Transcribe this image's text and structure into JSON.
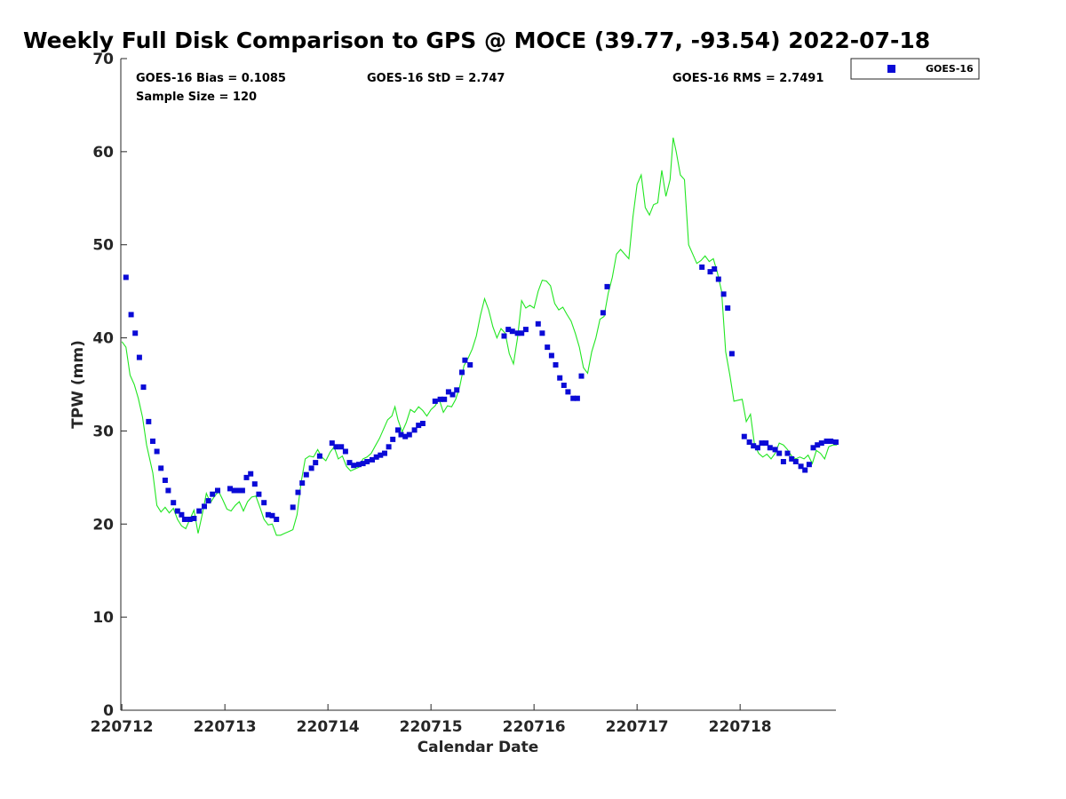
{
  "chart_data": {
    "type": "scatter+line",
    "title": "Weekly Full Disk Comparison to GPS @ MOCE (39.77, -93.54) 2022-07-18",
    "xlabel": "Calendar Date",
    "ylabel": "TPW (mm)",
    "xlim": [
      0,
      6.95
    ],
    "ylim": [
      0,
      70
    ],
    "x_ticks": [
      0,
      1,
      2,
      3,
      4,
      5,
      6
    ],
    "x_tick_labels": [
      "220712",
      "220713",
      "220714",
      "220715",
      "220716",
      "220717",
      "220718"
    ],
    "y_ticks": [
      0,
      10,
      20,
      30,
      40,
      50,
      60,
      70
    ],
    "y_tick_labels": [
      "0",
      "10",
      "20",
      "30",
      "40",
      "50",
      "60",
      "70"
    ],
    "stats": {
      "bias": "GOES-16 Bias = 0.1085",
      "std": "GOES-16 StD = 2.747",
      "rms": "GOES-16 RMS = 2.7491",
      "sample": "Sample Size = 120"
    },
    "legend": {
      "position": "top-right-outside",
      "entries": [
        "GOES-16"
      ]
    },
    "colors": {
      "goes": "#0a0ad6",
      "gps": "#22e622",
      "axis": "#262626"
    },
    "series": [
      {
        "name": "GOES-16",
        "kind": "scatter",
        "points": [
          [
            0.04,
            46.5
          ],
          [
            0.09,
            42.5
          ],
          [
            0.13,
            40.5
          ],
          [
            0.17,
            37.9
          ],
          [
            0.21,
            34.7
          ],
          [
            0.26,
            31.0
          ],
          [
            0.3,
            28.9
          ],
          [
            0.34,
            27.8
          ],
          [
            0.38,
            26.0
          ],
          [
            0.42,
            24.7
          ],
          [
            0.45,
            23.6
          ],
          [
            0.5,
            22.3
          ],
          [
            0.54,
            21.4
          ],
          [
            0.58,
            21.0
          ],
          [
            0.61,
            20.5
          ],
          [
            0.66,
            20.5
          ],
          [
            0.7,
            20.6
          ],
          [
            0.75,
            21.4
          ],
          [
            0.8,
            21.9
          ],
          [
            0.84,
            22.5
          ],
          [
            0.88,
            23.2
          ],
          [
            0.93,
            23.6
          ],
          [
            1.05,
            23.8
          ],
          [
            1.09,
            23.6
          ],
          [
            1.13,
            23.6
          ],
          [
            1.17,
            23.6
          ],
          [
            1.21,
            25.0
          ],
          [
            1.25,
            25.4
          ],
          [
            1.29,
            24.3
          ],
          [
            1.33,
            23.2
          ],
          [
            1.38,
            22.3
          ],
          [
            1.42,
            21.0
          ],
          [
            1.46,
            20.9
          ],
          [
            1.5,
            20.5
          ],
          [
            1.66,
            21.8
          ],
          [
            1.71,
            23.4
          ],
          [
            1.75,
            24.4
          ],
          [
            1.79,
            25.3
          ],
          [
            1.84,
            26.0
          ],
          [
            1.88,
            26.6
          ],
          [
            1.92,
            27.3
          ],
          [
            2.04,
            28.7
          ],
          [
            2.08,
            28.3
          ],
          [
            2.13,
            28.3
          ],
          [
            2.17,
            27.8
          ],
          [
            2.21,
            26.6
          ],
          [
            2.25,
            26.3
          ],
          [
            2.3,
            26.4
          ],
          [
            2.34,
            26.5
          ],
          [
            2.38,
            26.7
          ],
          [
            2.43,
            26.9
          ],
          [
            2.47,
            27.2
          ],
          [
            2.51,
            27.4
          ],
          [
            2.55,
            27.6
          ],
          [
            2.59,
            28.3
          ],
          [
            2.63,
            29.1
          ],
          [
            2.68,
            30.1
          ],
          [
            2.71,
            29.6
          ],
          [
            2.75,
            29.4
          ],
          [
            2.79,
            29.6
          ],
          [
            2.84,
            30.1
          ],
          [
            2.88,
            30.6
          ],
          [
            2.92,
            30.8
          ],
          [
            3.04,
            33.2
          ],
          [
            3.09,
            33.4
          ],
          [
            3.13,
            33.4
          ],
          [
            3.17,
            34.2
          ],
          [
            3.21,
            33.9
          ],
          [
            3.25,
            34.4
          ],
          [
            3.3,
            36.3
          ],
          [
            3.33,
            37.6
          ],
          [
            3.38,
            37.1
          ],
          [
            3.71,
            40.2
          ],
          [
            3.75,
            40.9
          ],
          [
            3.79,
            40.7
          ],
          [
            3.84,
            40.5
          ],
          [
            3.88,
            40.5
          ],
          [
            3.92,
            40.9
          ],
          [
            4.04,
            41.5
          ],
          [
            4.08,
            40.5
          ],
          [
            4.13,
            39.0
          ],
          [
            4.17,
            38.1
          ],
          [
            4.21,
            37.1
          ],
          [
            4.25,
            35.7
          ],
          [
            4.29,
            34.9
          ],
          [
            4.33,
            34.2
          ],
          [
            4.38,
            33.5
          ],
          [
            4.42,
            33.5
          ],
          [
            4.46,
            35.9
          ],
          [
            4.67,
            42.7
          ],
          [
            4.71,
            45.5
          ],
          [
            5.63,
            47.6
          ],
          [
            5.71,
            47.1
          ],
          [
            5.75,
            47.4
          ],
          [
            5.79,
            46.3
          ],
          [
            5.84,
            44.7
          ],
          [
            5.88,
            43.2
          ],
          [
            5.92,
            38.3
          ],
          [
            6.04,
            29.4
          ],
          [
            6.09,
            28.8
          ],
          [
            6.13,
            28.4
          ],
          [
            6.17,
            28.2
          ],
          [
            6.21,
            28.7
          ],
          [
            6.25,
            28.7
          ],
          [
            6.29,
            28.2
          ],
          [
            6.34,
            28.0
          ],
          [
            6.38,
            27.6
          ],
          [
            6.42,
            26.7
          ],
          [
            6.46,
            27.6
          ],
          [
            6.5,
            27.0
          ],
          [
            6.54,
            26.7
          ],
          [
            6.59,
            26.2
          ],
          [
            6.63,
            25.8
          ],
          [
            6.67,
            26.4
          ],
          [
            6.71,
            28.2
          ],
          [
            6.75,
            28.5
          ],
          [
            6.79,
            28.7
          ],
          [
            6.84,
            28.9
          ],
          [
            6.88,
            28.9
          ],
          [
            6.93,
            28.8
          ]
        ]
      },
      {
        "name": "GPS",
        "kind": "line",
        "points": [
          [
            0.0,
            39.6
          ],
          [
            0.04,
            39.0
          ],
          [
            0.08,
            36.0
          ],
          [
            0.12,
            35.0
          ],
          [
            0.16,
            33.5
          ],
          [
            0.2,
            31.5
          ],
          [
            0.24,
            28.5
          ],
          [
            0.3,
            25.5
          ],
          [
            0.34,
            22.0
          ],
          [
            0.38,
            21.3
          ],
          [
            0.42,
            21.8
          ],
          [
            0.46,
            21.2
          ],
          [
            0.5,
            21.7
          ],
          [
            0.54,
            20.5
          ],
          [
            0.58,
            19.8
          ],
          [
            0.62,
            19.5
          ],
          [
            0.66,
            20.5
          ],
          [
            0.7,
            21.5
          ],
          [
            0.74,
            19.0
          ],
          [
            0.78,
            21.0
          ],
          [
            0.82,
            23.3
          ],
          [
            0.86,
            22.3
          ],
          [
            0.9,
            23.0
          ],
          [
            0.94,
            23.5
          ],
          [
            0.98,
            22.6
          ],
          [
            1.02,
            21.6
          ],
          [
            1.06,
            21.4
          ],
          [
            1.1,
            22.0
          ],
          [
            1.14,
            22.4
          ],
          [
            1.18,
            21.4
          ],
          [
            1.22,
            22.4
          ],
          [
            1.26,
            22.9
          ],
          [
            1.3,
            23.0
          ],
          [
            1.34,
            21.8
          ],
          [
            1.38,
            20.5
          ],
          [
            1.42,
            19.9
          ],
          [
            1.46,
            20.0
          ],
          [
            1.5,
            18.8
          ],
          [
            1.54,
            18.8
          ],
          [
            1.58,
            19.0
          ],
          [
            1.62,
            19.2
          ],
          [
            1.66,
            19.4
          ],
          [
            1.7,
            21.0
          ],
          [
            1.74,
            24.5
          ],
          [
            1.78,
            27.0
          ],
          [
            1.82,
            27.3
          ],
          [
            1.86,
            27.2
          ],
          [
            1.9,
            28.0
          ],
          [
            1.94,
            27.2
          ],
          [
            1.98,
            26.8
          ],
          [
            2.02,
            27.7
          ],
          [
            2.06,
            28.3
          ],
          [
            2.1,
            27.0
          ],
          [
            2.14,
            27.3
          ],
          [
            2.18,
            26.2
          ],
          [
            2.22,
            25.7
          ],
          [
            2.26,
            25.9
          ],
          [
            2.3,
            26.1
          ],
          [
            2.34,
            27.0
          ],
          [
            2.38,
            27.2
          ],
          [
            2.42,
            27.6
          ],
          [
            2.46,
            28.4
          ],
          [
            2.5,
            29.2
          ],
          [
            2.54,
            30.2
          ],
          [
            2.58,
            31.2
          ],
          [
            2.62,
            31.6
          ],
          [
            2.65,
            32.6
          ],
          [
            2.68,
            31.2
          ],
          [
            2.72,
            29.9
          ],
          [
            2.76,
            30.9
          ],
          [
            2.8,
            32.3
          ],
          [
            2.84,
            32.0
          ],
          [
            2.88,
            32.6
          ],
          [
            2.92,
            32.2
          ],
          [
            2.96,
            31.6
          ],
          [
            3.0,
            32.3
          ],
          [
            3.04,
            32.7
          ],
          [
            3.08,
            33.4
          ],
          [
            3.12,
            32.0
          ],
          [
            3.16,
            32.7
          ],
          [
            3.2,
            32.6
          ],
          [
            3.24,
            33.4
          ],
          [
            3.28,
            34.8
          ],
          [
            3.32,
            37.0
          ],
          [
            3.36,
            37.8
          ],
          [
            3.4,
            38.8
          ],
          [
            3.44,
            40.2
          ],
          [
            3.48,
            42.4
          ],
          [
            3.52,
            44.2
          ],
          [
            3.56,
            43.0
          ],
          [
            3.6,
            41.2
          ],
          [
            3.64,
            40.0
          ],
          [
            3.68,
            41.0
          ],
          [
            3.72,
            40.5
          ],
          [
            3.76,
            38.3
          ],
          [
            3.8,
            37.2
          ],
          [
            3.84,
            40.0
          ],
          [
            3.88,
            44.0
          ],
          [
            3.92,
            43.2
          ],
          [
            3.96,
            43.5
          ],
          [
            4.0,
            43.2
          ],
          [
            4.04,
            45.0
          ],
          [
            4.08,
            46.2
          ],
          [
            4.12,
            46.1
          ],
          [
            4.16,
            45.6
          ],
          [
            4.2,
            43.7
          ],
          [
            4.24,
            43.0
          ],
          [
            4.28,
            43.3
          ],
          [
            4.32,
            42.5
          ],
          [
            4.36,
            41.8
          ],
          [
            4.4,
            40.5
          ],
          [
            4.44,
            39.0
          ],
          [
            4.48,
            36.8
          ],
          [
            4.52,
            36.2
          ],
          [
            4.56,
            38.5
          ],
          [
            4.6,
            40.0
          ],
          [
            4.64,
            42.0
          ],
          [
            4.68,
            42.3
          ],
          [
            4.72,
            44.8
          ],
          [
            4.76,
            46.5
          ],
          [
            4.8,
            49.0
          ],
          [
            4.84,
            49.5
          ],
          [
            4.88,
            49.0
          ],
          [
            4.92,
            48.5
          ],
          [
            4.96,
            53.0
          ],
          [
            5.0,
            56.5
          ],
          [
            5.04,
            57.5
          ],
          [
            5.08,
            54.0
          ],
          [
            5.12,
            53.2
          ],
          [
            5.16,
            54.3
          ],
          [
            5.2,
            54.5
          ],
          [
            5.24,
            58.0
          ],
          [
            5.28,
            55.2
          ],
          [
            5.32,
            57.0
          ],
          [
            5.35,
            61.5
          ],
          [
            5.38,
            60.0
          ],
          [
            5.42,
            57.5
          ],
          [
            5.46,
            57.0
          ],
          [
            5.5,
            50.0
          ],
          [
            5.54,
            49.0
          ],
          [
            5.58,
            48.0
          ],
          [
            5.62,
            48.3
          ],
          [
            5.66,
            48.8
          ],
          [
            5.7,
            48.2
          ],
          [
            5.74,
            48.5
          ],
          [
            5.78,
            47.0
          ],
          [
            5.82,
            45.0
          ],
          [
            5.86,
            38.5
          ],
          [
            5.9,
            36.0
          ],
          [
            5.94,
            33.2
          ],
          [
            5.98,
            33.3
          ],
          [
            6.02,
            33.4
          ],
          [
            6.06,
            31.0
          ],
          [
            6.1,
            31.8
          ],
          [
            6.14,
            28.5
          ],
          [
            6.18,
            27.6
          ],
          [
            6.22,
            27.2
          ],
          [
            6.26,
            27.5
          ],
          [
            6.3,
            27.0
          ],
          [
            6.34,
            27.6
          ],
          [
            6.38,
            28.7
          ],
          [
            6.42,
            28.5
          ],
          [
            6.46,
            28.0
          ],
          [
            6.5,
            27.3
          ],
          [
            6.54,
            27.0
          ],
          [
            6.58,
            27.2
          ],
          [
            6.62,
            27.0
          ],
          [
            6.66,
            27.4
          ],
          [
            6.7,
            26.5
          ],
          [
            6.74,
            27.9
          ],
          [
            6.78,
            27.6
          ],
          [
            6.82,
            27.0
          ],
          [
            6.86,
            28.3
          ],
          [
            6.9,
            28.5
          ],
          [
            6.94,
            28.5
          ]
        ]
      }
    ]
  }
}
